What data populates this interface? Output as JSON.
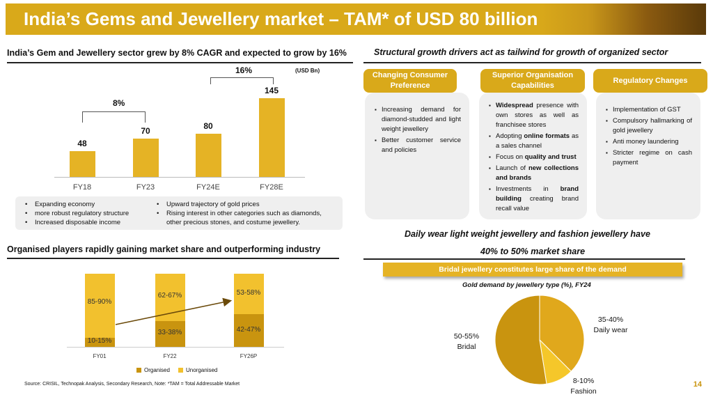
{
  "header": {
    "title": "India’s Gems and Jewellery market – TAM* of USD 80 billion"
  },
  "colors": {
    "accent": "#d9a91a",
    "bar": "#e5b325",
    "organised": "#c9940f",
    "unorganised": "#f2c12e",
    "pie_bridal": "#c9940f",
    "pie_daily": "#e0a81c",
    "pie_fashion": "#f5c72a"
  },
  "left_top": {
    "title": "India’s Gem and Jewellery sector grew by 8% CAGR and expected to grow by 16%",
    "unit": "(USD Bn)",
    "cagr1": "8%",
    "cagr2": "16%",
    "bullets_col1": [
      "Expanding economy",
      "more robust regulatory structure",
      "Increased disposable income"
    ],
    "bullets_col2": [
      "Upward trajectory of gold prices",
      "Rising interest in other categories such as diamonds,",
      "other precious stones, and costume jewellery."
    ]
  },
  "right_top": {
    "title": "Structural growth drivers act as tailwind for growth of organized sector",
    "pill1": "Changing Consumer Preference",
    "pill2": "Superior Organisation Capabilities",
    "pill3": "Regulatory Changes",
    "card1": [
      "Increasing demand for diamond-studded and light weight jewellery",
      "Better customer service and policies"
    ],
    "card2_1_bold": "Widespread",
    "card2_1_rest": " presence with own stores as well as franchisee stores",
    "card2_2_pre": "Adopting ",
    "card2_2_bold": "online formats",
    "card2_2_rest": " as a sales channel",
    "card2_3_pre": "Focus on ",
    "card2_3_bold": "quality and trust",
    "card2_4_pre": "Launch of ",
    "card2_4_bold": "new collections and brands",
    "card2_5_pre": "Investments in ",
    "card2_5_bold": "brand building",
    "card2_5_rest": " creating brand recall value",
    "card3": [
      "Implementation of GST",
      "Compulsory hallmarking of gold jewellery",
      "Anti money laundering",
      "Stricter regime on cash payment"
    ]
  },
  "left_bottom": {
    "title": "Organised players rapidly gaining market share and outperforming industry"
  },
  "right_bottom": {
    "title_line1": "Daily wear light weight jewellery and fashion jewellery have",
    "title_line2": "40% to 50% market share",
    "callout": "Bridal jewellery constitutes large share of the demand",
    "chart_title": "Gold demand by jewellery type (%), FY24"
  },
  "footer": {
    "source": "Source: CRISIL, Technopak Analysis, Secondary Research, Note: *TAM = Total Addressable Market",
    "page": "14"
  },
  "chart_data": [
    {
      "type": "bar",
      "title": "India’s Gem and Jewellery sector grew by 8% CAGR and expected to grow by 16%",
      "ylabel": "USD Bn",
      "categories": [
        "FY18",
        "FY23",
        "FY24E",
        "FY28E"
      ],
      "values": [
        48,
        70,
        80,
        145
      ],
      "value_labels": [
        "48",
        "70",
        "80",
        "145"
      ],
      "ylim": [
        0,
        160
      ]
    },
    {
      "type": "bar",
      "stacked": true,
      "title": "Organised players rapidly gaining market share and outperforming industry",
      "categories": [
        "FY01",
        "FY22",
        "FY26P"
      ],
      "series": [
        {
          "name": "Organised",
          "values": [
            12.5,
            35.5,
            44.5
          ],
          "labels": [
            "10-15%",
            "33-38%",
            "42-47%"
          ]
        },
        {
          "name": "Unorganised",
          "values": [
            87.5,
            64.5,
            55.5
          ],
          "labels": [
            "85-90%",
            "62-67%",
            "53-58%"
          ]
        }
      ],
      "ylim": [
        0,
        100
      ]
    },
    {
      "type": "pie",
      "title": "Gold demand by jewellery type (%), FY24",
      "labels": [
        "Bridal",
        "Daily wear",
        "Fashion"
      ],
      "values": [
        52.5,
        37.5,
        10
      ],
      "value_labels": [
        "50-55%",
        "35-40%",
        "8-10%"
      ]
    }
  ]
}
